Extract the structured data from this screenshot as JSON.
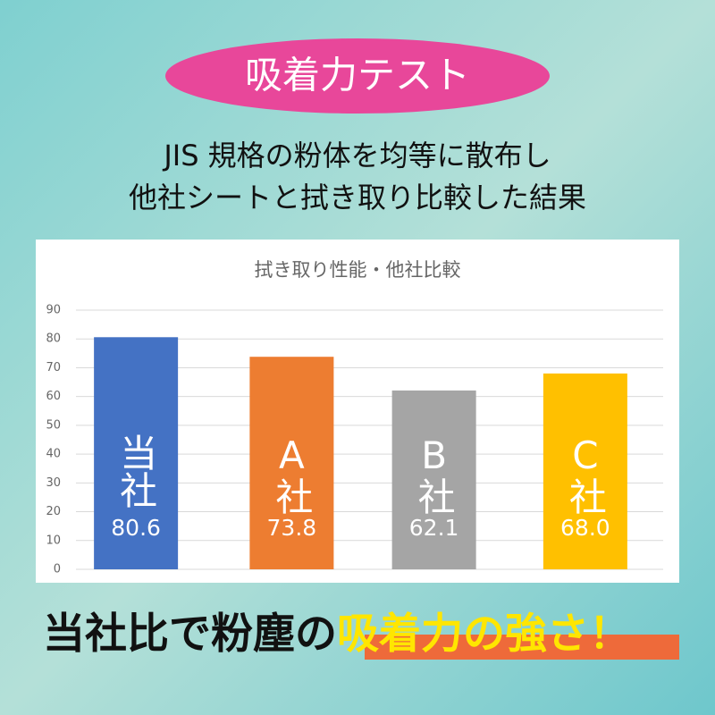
{
  "header": {
    "badge": "吸着力テスト",
    "lines": [
      "JIS 規格の粉体を均等に散布し",
      "他社シートと拭き取り比較した結果"
    ]
  },
  "chart_data": {
    "type": "bar",
    "title": "拭き取り性能・他社比較",
    "categories": [
      "当社",
      "A社",
      "B社",
      "C社"
    ],
    "values": [
      80.6,
      73.8,
      62.1,
      68.0
    ],
    "value_labels": [
      "80.6",
      "73.8",
      "62.1",
      "68.0"
    ],
    "colors": [
      "#4472c4",
      "#ed7d31",
      "#a5a5a5",
      "#ffc000"
    ],
    "ylim": [
      0,
      90
    ],
    "yticks": [
      0,
      10,
      20,
      30,
      40,
      50,
      60,
      70,
      80,
      90
    ],
    "grid": true
  },
  "footer": {
    "plain": "当社比で粉塵の",
    "highlight": "吸着力の強さ！"
  }
}
